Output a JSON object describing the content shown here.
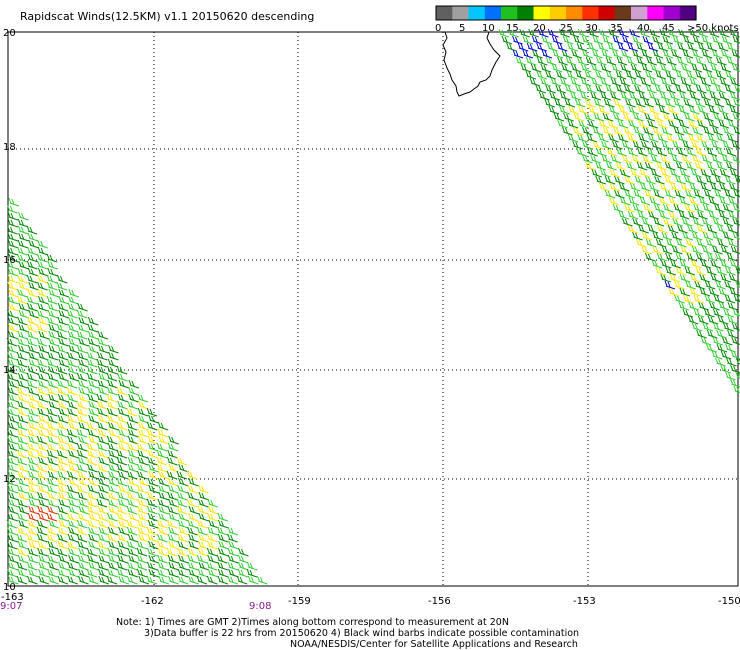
{
  "title": "Rapidscat Winds(12.5KM) v1.1 20150620 descending",
  "legend": {
    "tick_labels": [
      "0",
      "5",
      "10",
      "15",
      "20",
      "25",
      "30",
      "35",
      "40",
      "45",
      ">50 knots"
    ],
    "colors": [
      "#606060",
      "#a0a0a0",
      "#00c8ff",
      "#0070ff",
      "#20c020",
      "#008000",
      "#ffff00",
      "#ffcc00",
      "#ff8c00",
      "#ff3000",
      "#d00000",
      "#6b3a1a",
      "#d0a0d0",
      "#ff00ff",
      "#a000d0",
      "#500080"
    ]
  },
  "axes": {
    "lat_labels": [
      "20",
      "18",
      "16",
      "14",
      "12",
      "10"
    ],
    "lon_labels": [
      "-163",
      "-162",
      "-159",
      "-156",
      "-153",
      "-150"
    ],
    "time_labels": [
      "9:07",
      "9:08"
    ]
  },
  "notes": {
    "line1": "Note: 1) Times are GMT 2)Times along bottom correspond to measurement at 20N",
    "line2": "3)Data buffer is 22 hrs from 20150620 4) Black wind barbs indicate possible contamination",
    "line3": "NOAA/NESDIS/Center for Satellite Applications and Research"
  },
  "barb_colors": {
    "green_light": "#33cc33",
    "green_dark": "#008800",
    "yellow": "#ffe500",
    "blue": "#0000cc",
    "red": "#dd3300"
  },
  "coast_color": "#000000"
}
